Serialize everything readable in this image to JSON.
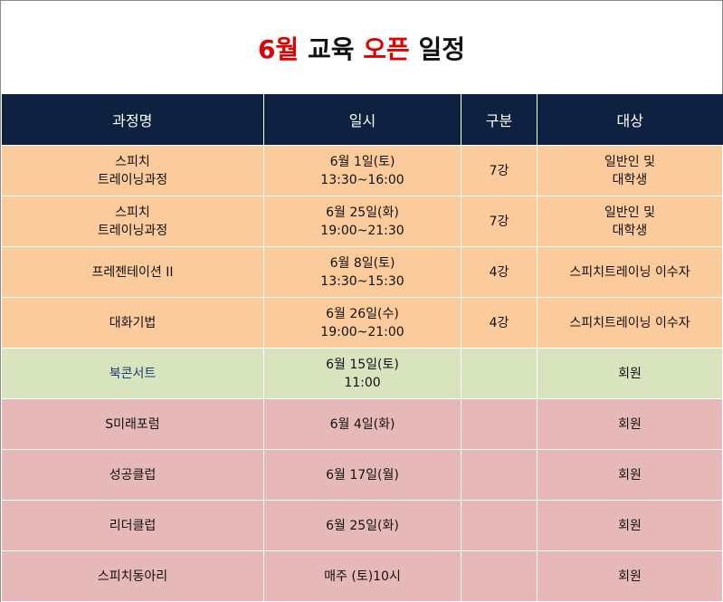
{
  "title": {
    "part1": "6월",
    "part2": "교육",
    "part3": "오픈",
    "part4": "일정"
  },
  "colors": {
    "header_bg": "#0f2140",
    "title_red": "#e00000",
    "row_orange": "#fbcb9b",
    "row_green": "#d7e4bd",
    "row_pink": "#e6b8b8"
  },
  "table": {
    "headers": [
      "과정명",
      "일시",
      "구분",
      "대상"
    ],
    "rows": [
      {
        "course": "스피치\n트레이닝과정",
        "date": "6월 1일(토)\n13:30~16:00",
        "type": "7강",
        "target": "일반인 및\n대학생"
      },
      {
        "course": "스피치\n트레이닝과정",
        "date": "6월 25일(화)\n19:00~21:30",
        "type": "7강",
        "target": "일반인 및\n대학생"
      },
      {
        "course": "프레젠테이션 II",
        "date": "6월 8일(토)\n13:30~15:30",
        "type": "4강",
        "target": "스피치트레이닝 이수자"
      },
      {
        "course": "대화기법",
        "date": "6월 26일(수)\n19:00~21:00",
        "type": "4강",
        "target": "스피치트레이닝 이수자"
      },
      {
        "course": "북콘서트",
        "date": "6월 15일(토)\n11:00",
        "type": "",
        "target": "회원"
      },
      {
        "course": "S미래포럼",
        "date": "6월 4일(화)",
        "type": "",
        "target": "회원"
      },
      {
        "course": "성공클럽",
        "date": "6월 17일(월)",
        "type": "",
        "target": "회원"
      },
      {
        "course": "리더클럽",
        "date": "6월 25일(화)",
        "type": "",
        "target": "회원"
      },
      {
        "course": "스피치동아리",
        "date": "매주 (토)10시",
        "type": "",
        "target": "회원"
      }
    ]
  }
}
